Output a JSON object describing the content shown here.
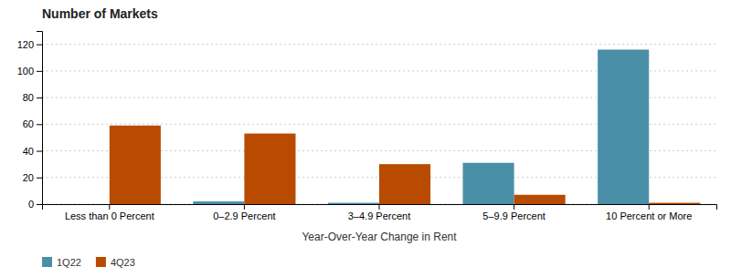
{
  "chart_data": {
    "type": "bar",
    "title": "Number of Markets",
    "xlabel": "Year-Over-Year Change in Rent",
    "categories": [
      "Less than 0 Percent",
      "0–2.9 Percent",
      "3–4.9 Percent",
      "5–9.9 Percent",
      "10 Percent or More"
    ],
    "series": [
      {
        "name": "1Q22",
        "color": "#4a8fa8",
        "values": [
          0,
          2,
          1,
          31,
          116
        ]
      },
      {
        "name": "4Q23",
        "color": "#b84b00",
        "values": [
          59,
          53,
          30,
          7,
          1
        ]
      }
    ],
    "ylim": [
      0,
      130
    ],
    "yticks": [
      0,
      20,
      40,
      60,
      80,
      100,
      120
    ],
    "grid": true,
    "legend": "bottom"
  }
}
